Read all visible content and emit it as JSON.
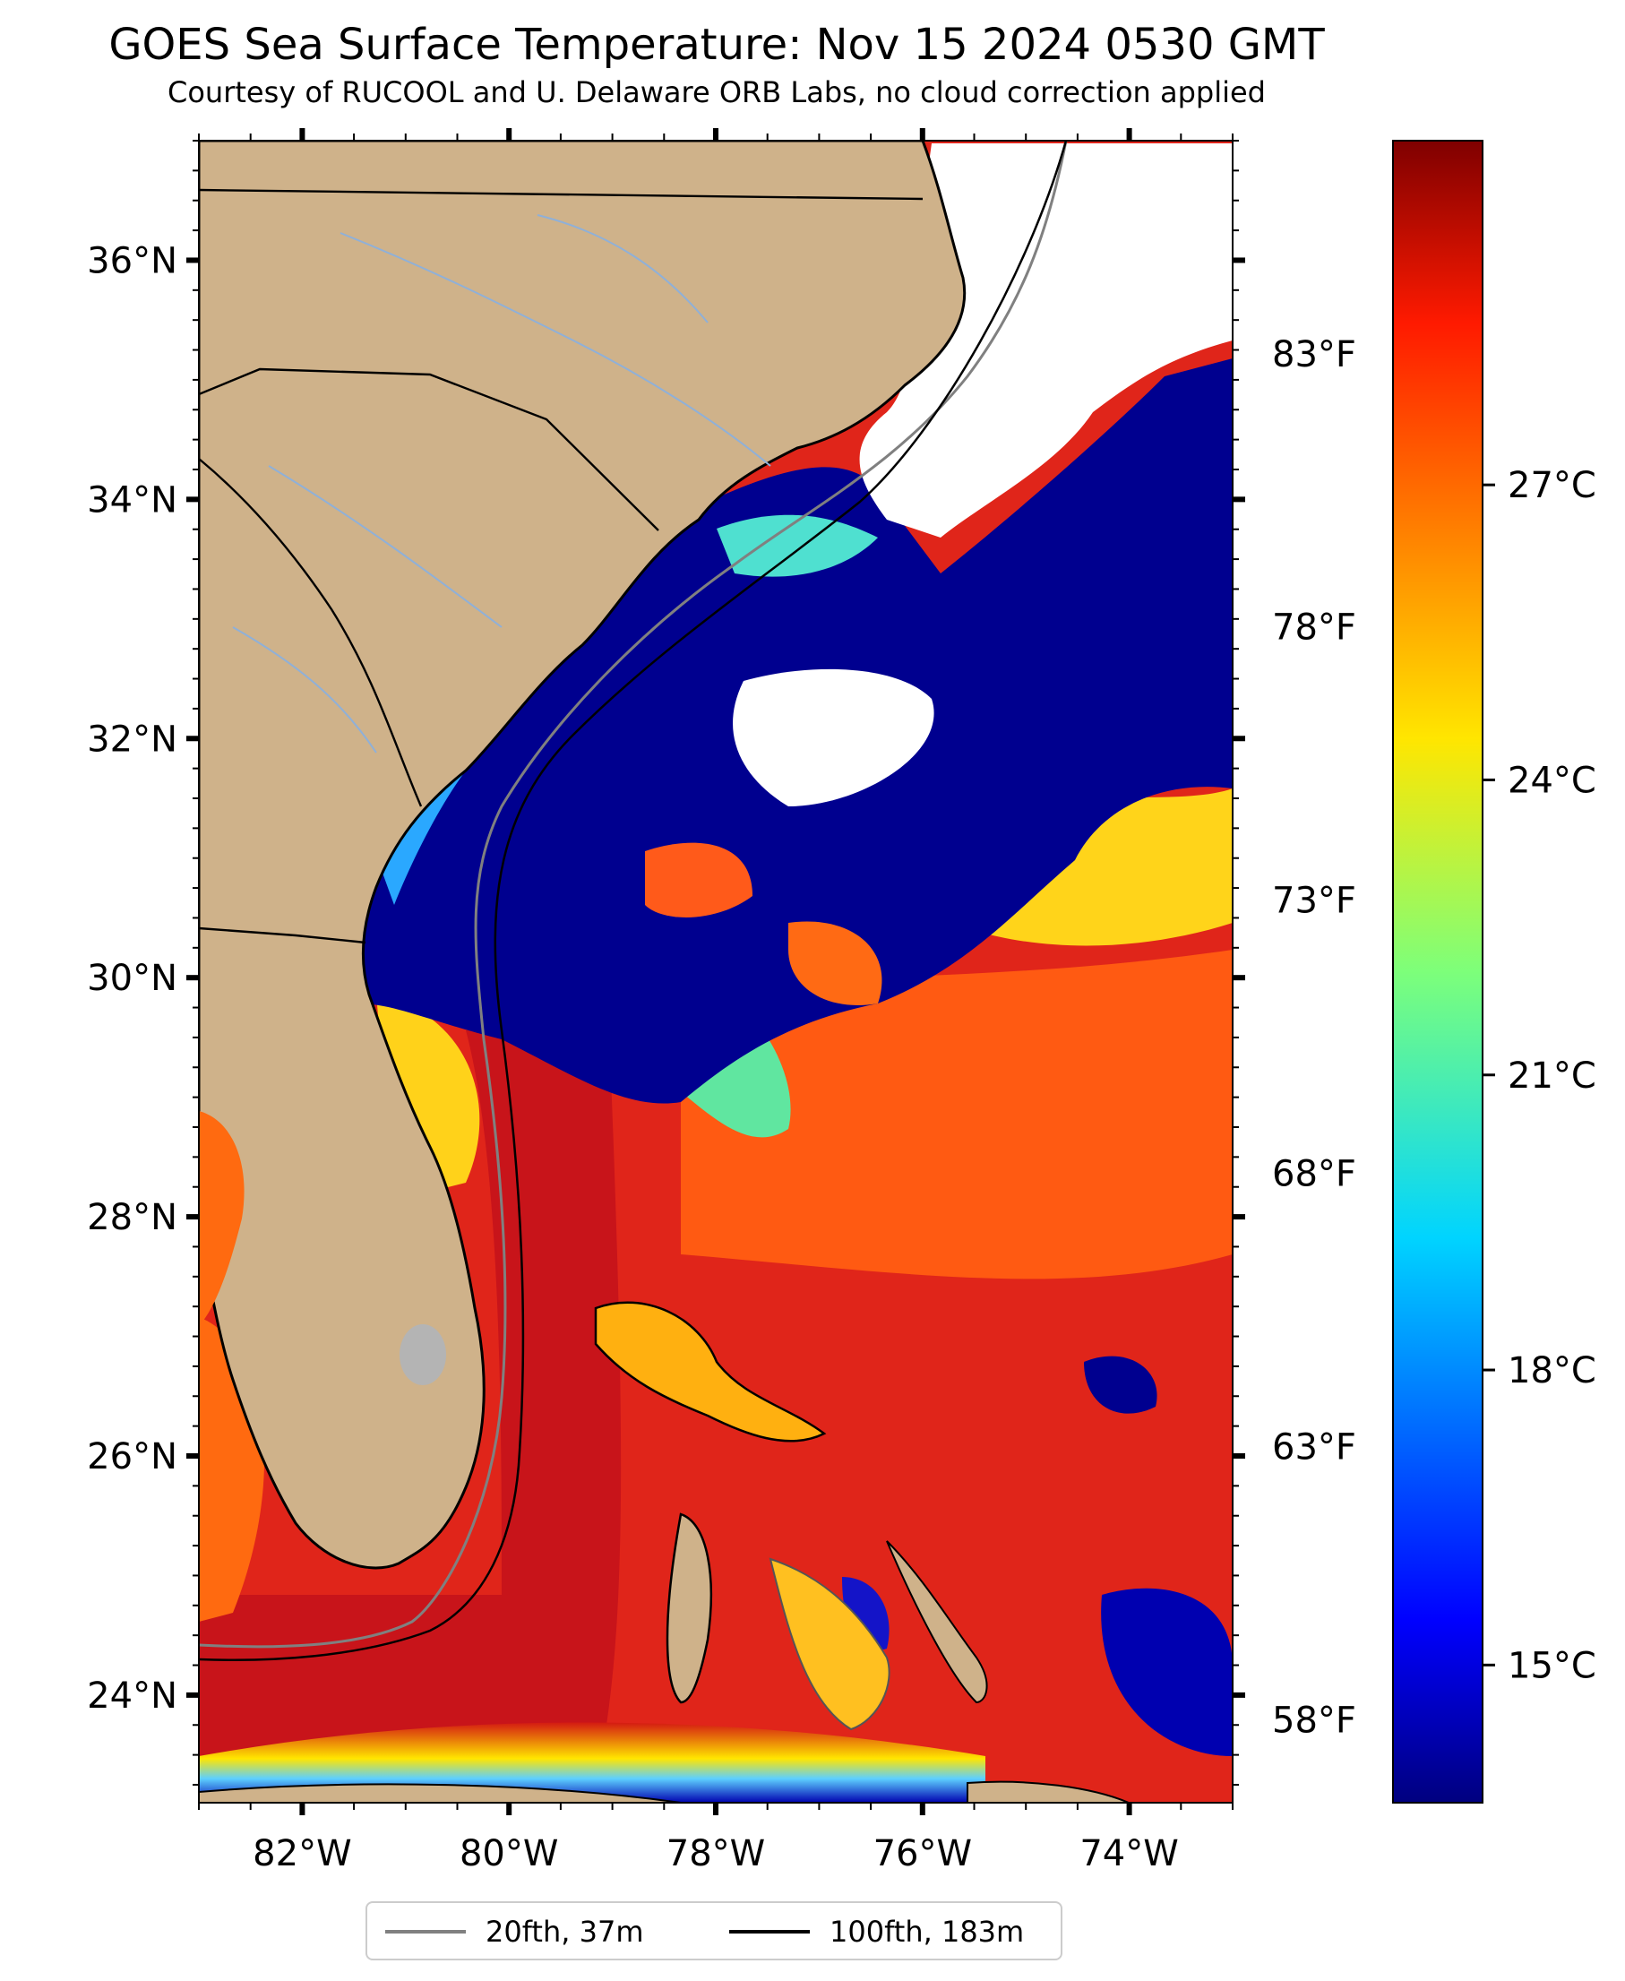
{
  "title": "GOES Sea Surface Temperature: Nov 15 2024 0530 GMT",
  "subtitle": "Courtesy of RUCOOL and U. Delaware ORB Labs, no cloud correction applied",
  "map": {
    "lon_range": [
      -83,
      -73
    ],
    "lat_range": [
      23.1,
      37
    ],
    "lon_ticks": [
      "82°W",
      "80°W",
      "78°W",
      "76°W",
      "74°W"
    ],
    "lat_ticks": [
      "24°N",
      "26°N",
      "28°N",
      "30°N",
      "32°N",
      "34°N",
      "36°N"
    ],
    "colors": {
      "land": "#cfb28a",
      "cloud": "#ffffff",
      "cold_water": "#00008f",
      "warm_water": "#e0251a",
      "lake": "#b4b4b4",
      "rivers": "#8fb0d8"
    }
  },
  "colorbar": {
    "celsius_range": [
      13.6,
      30.5
    ],
    "celsius_ticks": [
      "15°C",
      "18°C",
      "21°C",
      "24°C",
      "27°C"
    ],
    "celsius_values": [
      15,
      18,
      21,
      24,
      27
    ],
    "fahrenheit_ticks": [
      "58°F",
      "63°F",
      "68°F",
      "73°F",
      "78°F",
      "83°F"
    ],
    "fahrenheit_values": [
      58,
      63,
      68,
      73,
      78,
      83
    ]
  },
  "legend": {
    "items": [
      {
        "label": "20fth, 37m",
        "color": "#808080"
      },
      {
        "label": "100fth, 183m",
        "color": "#000000"
      }
    ]
  }
}
